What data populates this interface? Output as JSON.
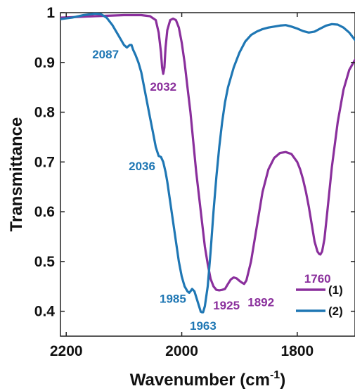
{
  "chart_data": {
    "type": "line",
    "xlabel": "Wavenumber (cm",
    "xlabel_sup": "-1",
    "xlabel_close": ")",
    "ylabel": "Transmittance",
    "xlim": [
      2210,
      1700
    ],
    "ylim": [
      0.35,
      1.0
    ],
    "x_reversed": true,
    "grid": false,
    "legend_position": "bottom-right",
    "x_ticks": [
      "2200",
      "2000",
      "1800"
    ],
    "x_tick_values": [
      2200,
      2000,
      1800
    ],
    "y_ticks": [
      "1",
      "0.9",
      "0.8",
      "0.7",
      "0.6",
      "0.5",
      "0.4"
    ],
    "y_tick_values": [
      1.0,
      0.9,
      0.8,
      0.7,
      0.6,
      0.5,
      0.4
    ],
    "series": [
      {
        "name": "(1)",
        "color": "#8a2f9c",
        "x": [
          2210,
          2150,
          2100,
          2070,
          2055,
          2045,
          2040,
          2036,
          2034,
          2032,
          2030,
          2028,
          2025,
          2020,
          2015,
          2010,
          2005,
          2000,
          1995,
          1990,
          1985,
          1980,
          1975,
          1970,
          1965,
          1960,
          1955,
          1950,
          1945,
          1940,
          1935,
          1930,
          1925,
          1920,
          1915,
          1910,
          1905,
          1900,
          1895,
          1892,
          1888,
          1880,
          1870,
          1860,
          1850,
          1840,
          1830,
          1820,
          1810,
          1800,
          1795,
          1790,
          1785,
          1780,
          1775,
          1770,
          1765,
          1762,
          1760,
          1757,
          1753,
          1748,
          1740,
          1730,
          1720,
          1710,
          1700
        ],
        "y": [
          0.99,
          0.993,
          0.995,
          0.995,
          0.993,
          0.985,
          0.96,
          0.92,
          0.89,
          0.877,
          0.89,
          0.93,
          0.965,
          0.985,
          0.988,
          0.985,
          0.97,
          0.94,
          0.9,
          0.85,
          0.8,
          0.74,
          0.68,
          0.63,
          0.58,
          0.53,
          0.495,
          0.465,
          0.45,
          0.443,
          0.442,
          0.443,
          0.445,
          0.455,
          0.464,
          0.468,
          0.466,
          0.461,
          0.457,
          0.455,
          0.462,
          0.5,
          0.57,
          0.64,
          0.685,
          0.708,
          0.718,
          0.72,
          0.716,
          0.7,
          0.685,
          0.665,
          0.64,
          0.61,
          0.575,
          0.54,
          0.52,
          0.515,
          0.514,
          0.52,
          0.545,
          0.6,
          0.69,
          0.78,
          0.845,
          0.885,
          0.905
        ]
      },
      {
        "name": "(2)",
        "color": "#1f77b4",
        "x": [
          2210,
          2190,
          2170,
          2150,
          2140,
          2130,
          2120,
          2110,
          2100,
          2095,
          2090,
          2087,
          2084,
          2080,
          2075,
          2070,
          2065,
          2060,
          2055,
          2050,
          2045,
          2040,
          2036,
          2032,
          2028,
          2025,
          2020,
          2015,
          2010,
          2005,
          2000,
          1995,
          1990,
          1987,
          1985,
          1982,
          1978,
          1974,
          1970,
          1967,
          1965,
          1963,
          1960,
          1955,
          1950,
          1945,
          1940,
          1935,
          1930,
          1925,
          1920,
          1910,
          1900,
          1890,
          1880,
          1870,
          1860,
          1850,
          1840,
          1830,
          1820,
          1810,
          1800,
          1790,
          1780,
          1770,
          1760,
          1750,
          1740,
          1730,
          1720,
          1710,
          1700
        ],
        "y": [
          0.987,
          0.99,
          0.995,
          0.998,
          0.997,
          0.99,
          0.975,
          0.955,
          0.935,
          0.93,
          0.935,
          0.935,
          0.925,
          0.915,
          0.9,
          0.88,
          0.85,
          0.82,
          0.79,
          0.76,
          0.73,
          0.712,
          0.71,
          0.7,
          0.68,
          0.66,
          0.62,
          0.58,
          0.54,
          0.5,
          0.47,
          0.45,
          0.44,
          0.437,
          0.44,
          0.445,
          0.44,
          0.425,
          0.41,
          0.399,
          0.398,
          0.398,
          0.41,
          0.45,
          0.52,
          0.6,
          0.67,
          0.73,
          0.78,
          0.82,
          0.85,
          0.89,
          0.92,
          0.942,
          0.955,
          0.962,
          0.967,
          0.97,
          0.972,
          0.974,
          0.975,
          0.972,
          0.968,
          0.963,
          0.96,
          0.962,
          0.968,
          0.974,
          0.977,
          0.976,
          0.97,
          0.96,
          0.945
        ]
      }
    ],
    "annotations": [
      {
        "text": "2087",
        "series": 1,
        "x": 2087,
        "y": 0.935
      },
      {
        "text": "2032",
        "series": 0,
        "x": 2032,
        "y": 0.877
      },
      {
        "text": "2036",
        "series": 1,
        "x": 2036,
        "y": 0.71
      },
      {
        "text": "1985",
        "series": 1,
        "x": 1985,
        "y": 0.437
      },
      {
        "text": "1963",
        "series": 1,
        "x": 1963,
        "y": 0.398
      },
      {
        "text": "1925",
        "series": 0,
        "x": 1925,
        "y": 0.445
      },
      {
        "text": "1892",
        "series": 0,
        "x": 1892,
        "y": 0.455
      },
      {
        "text": "1760",
        "series": 0,
        "x": 1760,
        "y": 0.514
      }
    ]
  }
}
